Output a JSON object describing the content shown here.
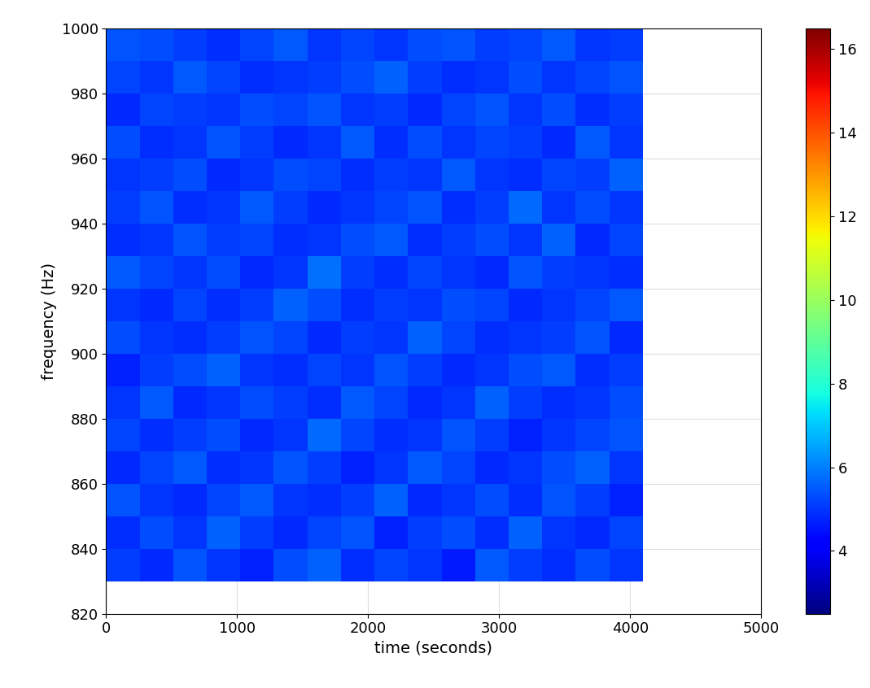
{
  "chart_data": {
    "type": "heatmap",
    "xlabel": "time (seconds)",
    "ylabel": "frequency (Hz)",
    "xlim": [
      0,
      5000
    ],
    "xticks": [
      0,
      1000,
      2000,
      3000,
      4000,
      5000
    ],
    "ylim": [
      820,
      1000
    ],
    "yticks": [
      820,
      840,
      860,
      880,
      900,
      920,
      940,
      960,
      980,
      1000
    ],
    "grid": true,
    "x_edges": [
      0,
      256,
      512,
      768,
      1024,
      1280,
      1536,
      1792,
      2048,
      2304,
      2560,
      2816,
      3072,
      3328,
      3584,
      3840,
      4096
    ],
    "y_edges": [
      830,
      840,
      850,
      860,
      870,
      880,
      890,
      900,
      910,
      920,
      930,
      940,
      950,
      960,
      970,
      980,
      990,
      1000
    ],
    "cells": [
      [
        5.1,
        4.8,
        5.4,
        5.0,
        4.7,
        5.3,
        5.6,
        4.9,
        5.2,
        5.0,
        4.6,
        5.5,
        5.1,
        4.9,
        5.3,
        5.0
      ],
      [
        4.9,
        5.3,
        5.0,
        5.6,
        5.1,
        4.8,
        5.2,
        5.4,
        4.7,
        5.1,
        5.3,
        4.9,
        5.6,
        5.0,
        4.8,
        5.2
      ],
      [
        5.4,
        5.0,
        4.8,
        5.2,
        5.5,
        5.0,
        4.9,
        5.1,
        5.6,
        4.8,
        5.0,
        5.3,
        4.9,
        5.4,
        5.1,
        4.7
      ],
      [
        4.8,
        5.2,
        5.5,
        4.9,
        5.0,
        5.4,
        5.1,
        4.7,
        5.0,
        5.5,
        5.2,
        4.8,
        5.0,
        5.3,
        5.6,
        5.0
      ],
      [
        5.2,
        4.9,
        5.1,
        5.3,
        4.8,
        5.0,
        5.7,
        5.2,
        4.9,
        5.0,
        5.4,
        5.1,
        4.7,
        5.0,
        5.2,
        5.4
      ],
      [
        5.0,
        5.5,
        4.8,
        5.0,
        5.3,
        5.1,
        4.9,
        5.5,
        5.2,
        4.8,
        5.0,
        5.6,
        5.1,
        4.9,
        5.0,
        5.3
      ],
      [
        4.7,
        5.1,
        5.3,
        5.6,
        5.0,
        4.9,
        5.2,
        5.0,
        5.4,
        5.1,
        4.8,
        5.0,
        5.3,
        5.5,
        4.9,
        5.1
      ],
      [
        5.3,
        5.0,
        4.9,
        5.1,
        5.4,
        5.2,
        4.8,
        5.1,
        5.0,
        5.6,
        5.2,
        4.9,
        5.0,
        5.1,
        5.4,
        4.8
      ],
      [
        5.0,
        4.8,
        5.2,
        4.9,
        5.1,
        5.6,
        5.3,
        4.9,
        5.1,
        5.0,
        5.3,
        5.2,
        4.8,
        5.0,
        5.2,
        5.5
      ],
      [
        5.5,
        5.2,
        5.0,
        5.3,
        4.8,
        5.0,
        5.8,
        5.1,
        4.9,
        5.2,
        5.0,
        4.8,
        5.4,
        5.1,
        5.0,
        4.9
      ],
      [
        4.9,
        5.0,
        5.4,
        5.1,
        5.2,
        4.9,
        5.0,
        5.3,
        5.5,
        4.9,
        5.1,
        5.3,
        5.0,
        5.6,
        4.8,
        5.2
      ],
      [
        5.1,
        5.4,
        4.9,
        5.0,
        5.5,
        5.1,
        4.8,
        5.0,
        5.2,
        5.4,
        4.9,
        5.1,
        5.7,
        5.0,
        5.3,
        5.0
      ],
      [
        5.0,
        5.1,
        5.3,
        4.8,
        5.0,
        5.3,
        5.2,
        4.9,
        5.1,
        5.0,
        5.5,
        5.0,
        4.9,
        5.2,
        5.1,
        5.6
      ],
      [
        5.3,
        4.9,
        5.0,
        5.4,
        5.1,
        4.8,
        5.0,
        5.5,
        4.9,
        5.3,
        5.0,
        5.2,
        5.1,
        4.8,
        5.5,
        5.0
      ],
      [
        4.8,
        5.2,
        5.1,
        5.0,
        5.3,
        5.2,
        5.4,
        5.0,
        5.1,
        4.8,
        5.2,
        5.4,
        5.0,
        5.3,
        4.9,
        5.1
      ],
      [
        5.2,
        5.0,
        5.5,
        5.2,
        4.9,
        5.0,
        5.1,
        5.3,
        5.6,
        5.1,
        4.9,
        5.0,
        5.3,
        5.0,
        5.2,
        5.4
      ],
      [
        5.4,
        5.3,
        5.1,
        4.9,
        5.2,
        5.5,
        5.0,
        5.2,
        5.0,
        5.3,
        5.4,
        5.1,
        5.2,
        5.5,
        5.0,
        5.1
      ]
    ],
    "colorbar": {
      "range": [
        2.5,
        16.5
      ],
      "ticks": [
        4,
        6,
        8,
        10,
        12,
        14,
        16
      ]
    }
  }
}
